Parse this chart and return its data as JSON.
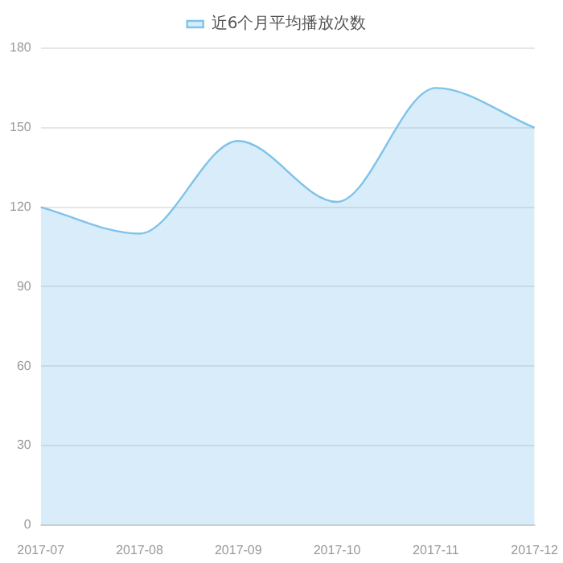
{
  "chart_data": {
    "type": "area",
    "categories": [
      "2017-07",
      "2017-08",
      "2017-09",
      "2017-10",
      "2017-11",
      "2017-12"
    ],
    "series": [
      {
        "name": "近6个月平均播放次数",
        "color": "#7fc2ea",
        "values": [
          120,
          110,
          145,
          122,
          165,
          150
        ]
      }
    ],
    "ylim": [
      0,
      180
    ],
    "yticks": [
      0,
      30,
      60,
      90,
      120,
      150,
      180
    ],
    "grid": "y",
    "legend": "top",
    "marker": "none"
  }
}
